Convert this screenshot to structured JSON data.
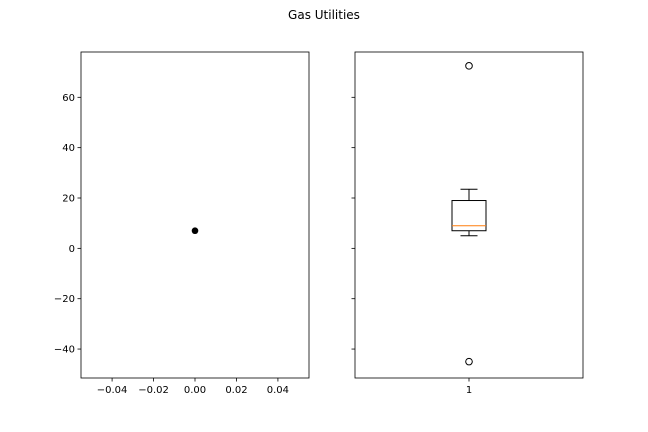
{
  "chart_data": {
    "title": "Gas Utilities",
    "shared_y": true,
    "ylim": [
      -51.5,
      78.0
    ],
    "yticks": [
      -40,
      -20,
      0,
      20,
      40,
      60
    ],
    "ytick_labels": [
      "−40",
      "−20",
      "0",
      "20",
      "40",
      "60"
    ],
    "panels": [
      {
        "type": "scatter",
        "xlim": [
          -0.055,
          0.055
        ],
        "xticks": [
          -0.04,
          -0.02,
          0.0,
          0.02,
          0.04
        ],
        "xtick_labels": [
          "−0.04",
          "−0.02",
          "0.00",
          "0.02",
          "0.04"
        ],
        "points": [
          {
            "x": 0.0,
            "y": 7.0
          }
        ],
        "colors": {
          "point": "#000000"
        }
      },
      {
        "type": "box",
        "xlim": [
          0.5,
          1.5
        ],
        "xticks": [
          1
        ],
        "xtick_labels": [
          "1"
        ],
        "box": {
          "position": 1,
          "whislo": 5,
          "q1": 7,
          "med": 9,
          "q3": 19,
          "whishi": 23.5,
          "fliers": [
            72.5,
            -45.0
          ]
        },
        "colors": {
          "box": "#000000",
          "median": "#ff7f0e",
          "flier": "#000000"
        }
      }
    ]
  }
}
